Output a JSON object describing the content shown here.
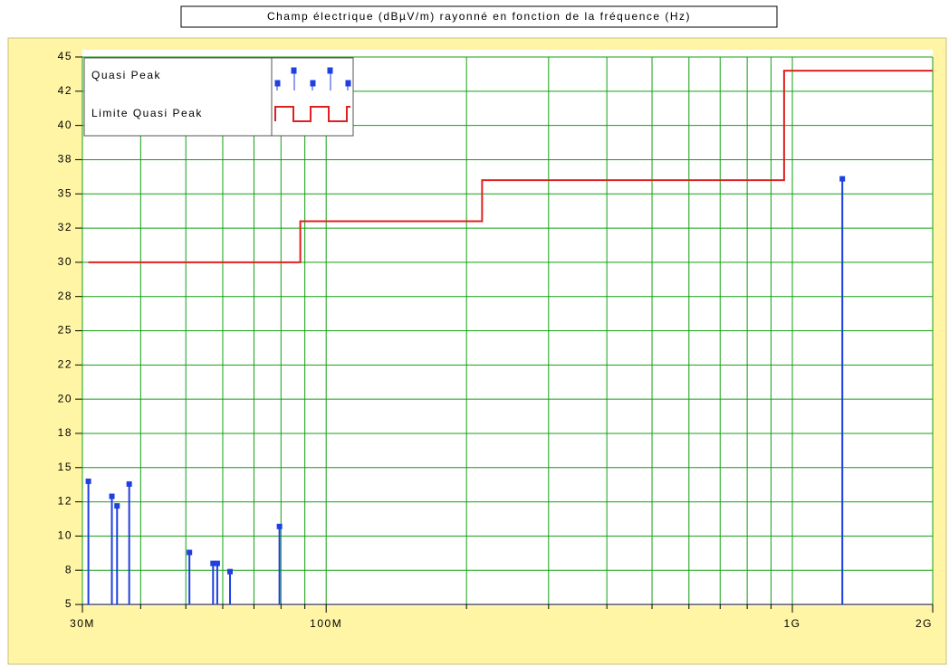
{
  "chart_data": {
    "type": "line",
    "title": "Champ électrique (dBµV/m) rayonné en fonction de la fréquence (Hz)",
    "log_x": true,
    "grid": true,
    "legend": "upper left",
    "xlim": [
      30000000,
      2000000000
    ],
    "xticks": [
      {
        "value": 30000000,
        "label": "30M"
      },
      {
        "value": 100000000,
        "label": "100M"
      },
      {
        "value": 1000000000,
        "label": "1G"
      },
      {
        "value": 2000000000,
        "label": "2G"
      }
    ],
    "xminor_ticks": [
      40000000,
      50000000,
      60000000,
      70000000,
      80000000,
      90000000,
      200000000,
      300000000,
      400000000,
      500000000,
      600000000,
      700000000,
      800000000,
      900000000
    ],
    "ylim": [
      5,
      45
    ],
    "yticks": [
      5,
      {
        "value": 7.5,
        "label": "8"
      },
      10,
      {
        "value": 12.5,
        "label": "12"
      },
      15,
      {
        "value": 17.5,
        "label": "18"
      },
      20,
      {
        "value": 22.5,
        "label": "22"
      },
      25,
      {
        "value": 27.5,
        "label": "28"
      },
      30,
      {
        "value": 32.5,
        "label": "32"
      },
      35,
      {
        "value": 37.5,
        "label": "38"
      },
      40,
      {
        "value": 42.5,
        "label": "42"
      },
      45
    ],
    "series": [
      {
        "name": "Quasi Peak",
        "type": "stem",
        "color": "#1f3fe0",
        "x": [
          30900000,
          34700000,
          35600000,
          37800000,
          50900000,
          57200000,
          58400000,
          62200000,
          79400000,
          1280000000
        ],
        "values": [
          14.0,
          12.9,
          12.2,
          13.8,
          8.8,
          8.0,
          8.0,
          7.4,
          10.7,
          36.1
        ]
      },
      {
        "name": "Limite Quasi Peak",
        "type": "line",
        "color": "#e02020",
        "x": [
          30900000,
          88000000,
          88000000,
          216000000,
          216000000,
          960000000,
          960000000,
          2000000000
        ],
        "values": [
          30,
          30,
          33,
          33,
          36,
          36,
          44,
          44
        ]
      }
    ]
  }
}
